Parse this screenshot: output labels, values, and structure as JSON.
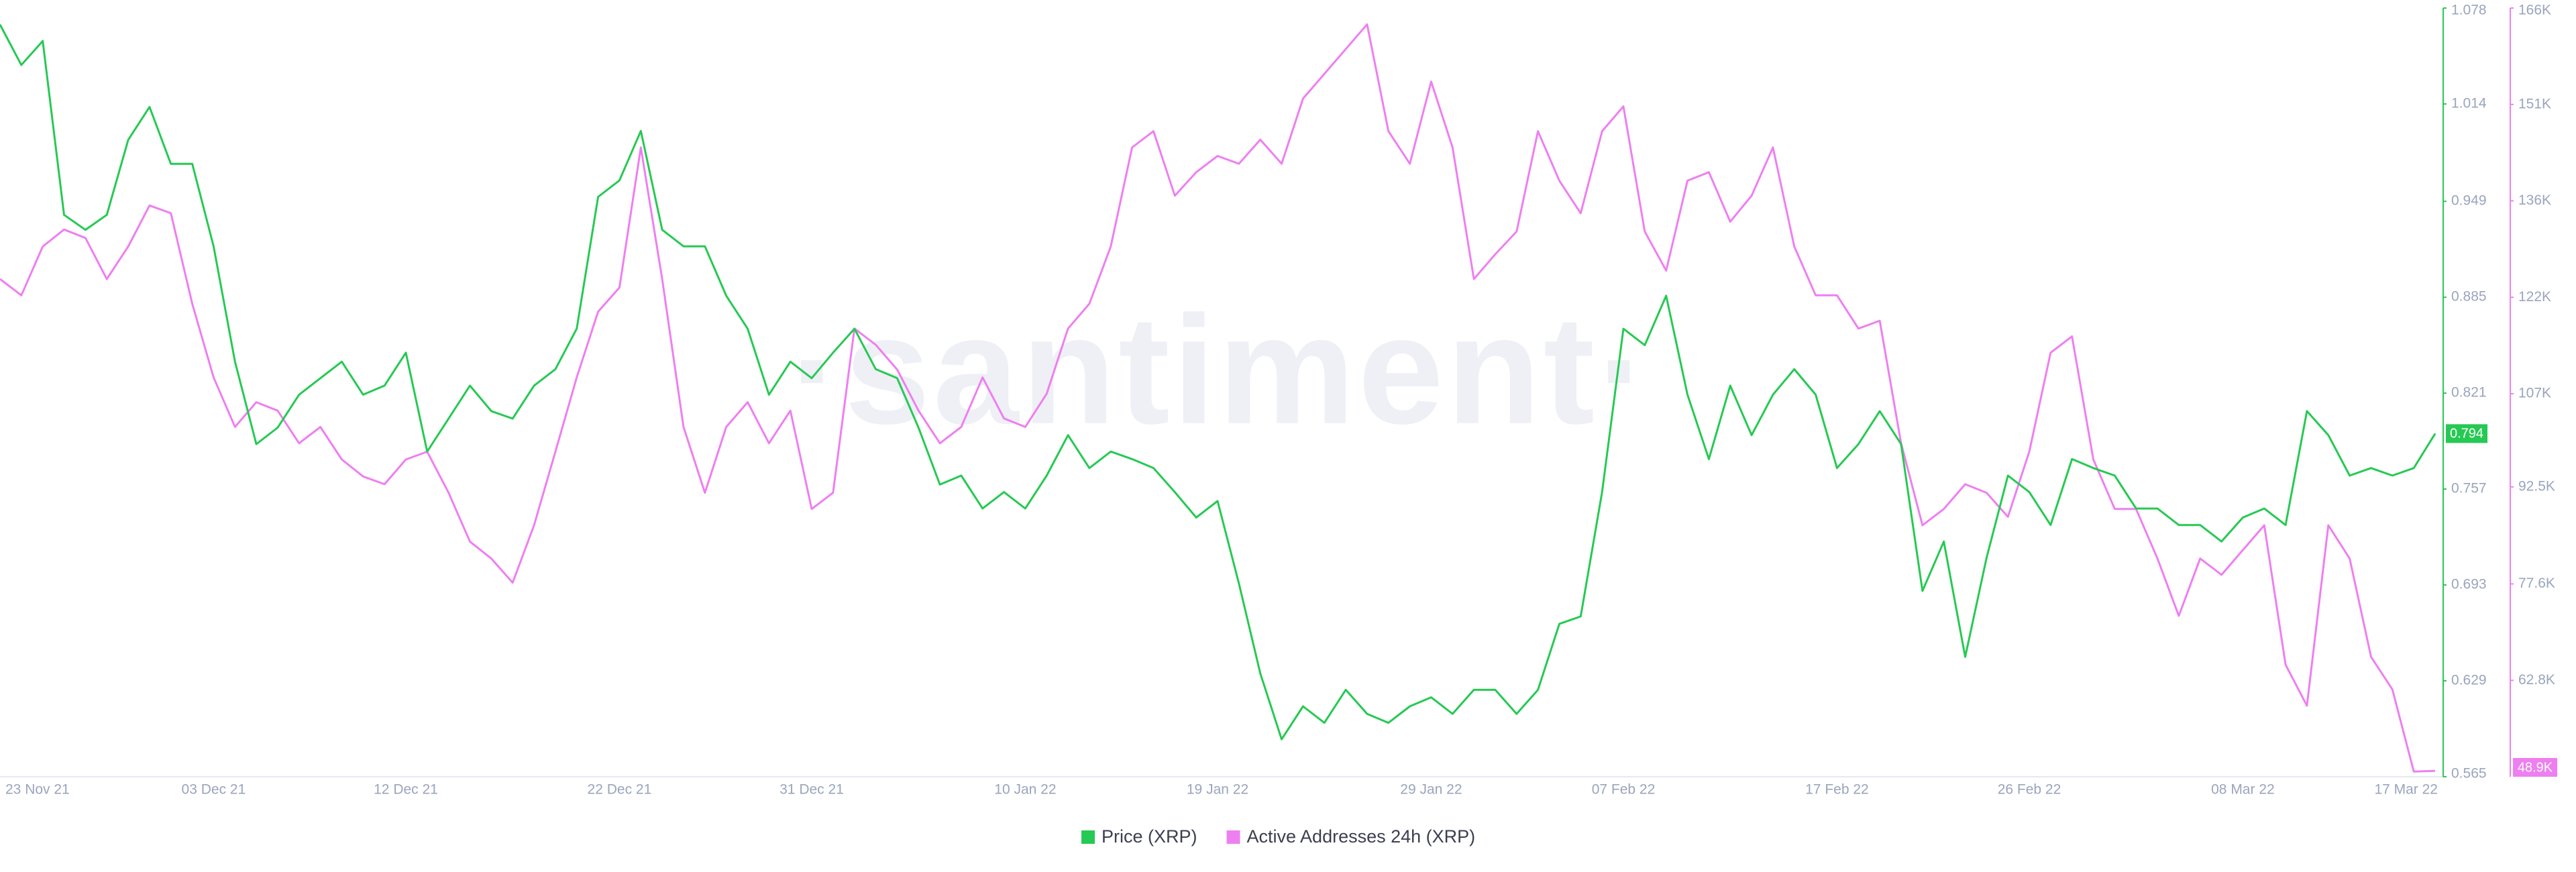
{
  "chart_data": {
    "type": "line",
    "watermark": "·santiment·",
    "categories": [
      "23 Nov 21",
      null,
      null,
      null,
      null,
      null,
      null,
      null,
      null,
      null,
      "03 Dec 21",
      null,
      null,
      null,
      null,
      null,
      null,
      null,
      null,
      "12 Dec 21",
      null,
      null,
      null,
      null,
      null,
      null,
      null,
      null,
      null,
      "22 Dec 21",
      null,
      null,
      null,
      null,
      null,
      null,
      null,
      null,
      "31 Dec 21",
      null,
      null,
      null,
      null,
      null,
      null,
      null,
      null,
      null,
      "10 Jan 22",
      null,
      null,
      null,
      null,
      null,
      null,
      null,
      null,
      "19 Jan 22",
      null,
      null,
      null,
      null,
      null,
      null,
      null,
      null,
      null,
      "29 Jan 22",
      null,
      null,
      null,
      null,
      null,
      null,
      null,
      null,
      "07 Feb 22",
      null,
      null,
      null,
      null,
      null,
      null,
      null,
      null,
      null,
      "17 Feb 22",
      null,
      null,
      null,
      null,
      null,
      null,
      null,
      null,
      "26 Feb 22",
      null,
      null,
      null,
      null,
      null,
      null,
      null,
      null,
      null,
      "08 Mar 22",
      null,
      null,
      null,
      null,
      null,
      null,
      null,
      null,
      "17 Mar 22"
    ],
    "series": [
      {
        "name": "Price (XRP)",
        "color": "#26c953",
        "axis": "y",
        "current_value": 0.794,
        "values": [
          1.067,
          1.04,
          1.056,
          0.94,
          0.93,
          0.94,
          0.99,
          1.012,
          0.974,
          0.974,
          0.919,
          0.842,
          0.787,
          0.798,
          0.82,
          0.831,
          0.842,
          0.82,
          0.826,
          0.848,
          0.782,
          0.804,
          0.826,
          0.809,
          0.804,
          0.826,
          0.837,
          0.864,
          0.952,
          0.963,
          0.996,
          0.93,
          0.919,
          0.919,
          0.886,
          0.864,
          0.82,
          0.842,
          0.831,
          0.848,
          0.864,
          0.837,
          0.831,
          0.798,
          0.76,
          0.766,
          0.744,
          0.755,
          0.744,
          0.766,
          0.793,
          0.771,
          0.782,
          0.777,
          0.771,
          0.755,
          0.738,
          0.749,
          0.694,
          0.634,
          0.59,
          0.612,
          0.601,
          0.623,
          0.607,
          0.601,
          0.612,
          0.618,
          0.607,
          0.623,
          0.623,
          0.607,
          0.623,
          0.667,
          0.672,
          0.755,
          0.864,
          0.853,
          0.886,
          0.82,
          0.777,
          0.826,
          0.793,
          0.82,
          0.837,
          0.82,
          0.771,
          0.787,
          0.809,
          0.787,
          0.689,
          0.722,
          0.645,
          0.711,
          0.766,
          0.755,
          0.733,
          0.777,
          0.771,
          0.766,
          0.744,
          0.744,
          0.733,
          0.733,
          0.722,
          0.738,
          0.744,
          0.733,
          0.809,
          0.793,
          0.766,
          0.771,
          0.766,
          0.771,
          0.794
        ]
      },
      {
        "name": "Active Addresses 24h (XRP)",
        "color": "#ee7ff0",
        "axis": "y2",
        "current_value": 48900,
        "current_value_label": "48.9K",
        "values": [
          124400,
          121900,
          129400,
          132000,
          130700,
          124400,
          129400,
          135700,
          134500,
          120600,
          109300,
          101700,
          105500,
          104200,
          99200,
          101700,
          96700,
          94100,
          92900,
          96700,
          97900,
          91600,
          84100,
          81500,
          77800,
          86600,
          97900,
          109300,
          119400,
          123100,
          144600,
          124400,
          101700,
          91600,
          101700,
          105500,
          99200,
          104200,
          89100,
          91600,
          116800,
          114300,
          110500,
          104200,
          99200,
          101700,
          109300,
          103000,
          101700,
          106800,
          116800,
          120600,
          129400,
          144600,
          147100,
          137200,
          140800,
          143300,
          142100,
          145800,
          142100,
          152100,
          155900,
          159700,
          163500,
          147100,
          142100,
          154700,
          144600,
          124400,
          128200,
          131700,
          147100,
          139500,
          134500,
          147100,
          150900,
          131700,
          125700,
          139500,
          140800,
          133200,
          137200,
          144600,
          129400,
          121900,
          121900,
          116800,
          118000,
          99200,
          86600,
          89100,
          92900,
          91600,
          87900,
          97900,
          113100,
          115600,
          96700,
          89100,
          89100,
          81500,
          72700,
          81500,
          79000,
          82800,
          86600,
          65200,
          58900,
          86600,
          81500,
          66400,
          61400,
          48800,
          48900
        ]
      }
    ],
    "ylim": [
      0.565,
      1.078
    ],
    "yticks": [
      1.078,
      1.014,
      0.949,
      0.885,
      0.821,
      0.757,
      0.693,
      0.629,
      0.565
    ],
    "y2lim": [
      48000,
      166000
    ],
    "y2ticks": [
      {
        "value": 166000,
        "label": "166K"
      },
      {
        "value": 151200,
        "label": "151K"
      },
      {
        "value": 136400,
        "label": "136K"
      },
      {
        "value": 121600,
        "label": "122K"
      },
      {
        "value": 106800,
        "label": "107K"
      },
      {
        "value": 92500,
        "label": "92.5K"
      },
      {
        "value": 77600,
        "label": "77.6K"
      },
      {
        "value": 62800,
        "label": "62.8K"
      }
    ],
    "grid": false
  }
}
